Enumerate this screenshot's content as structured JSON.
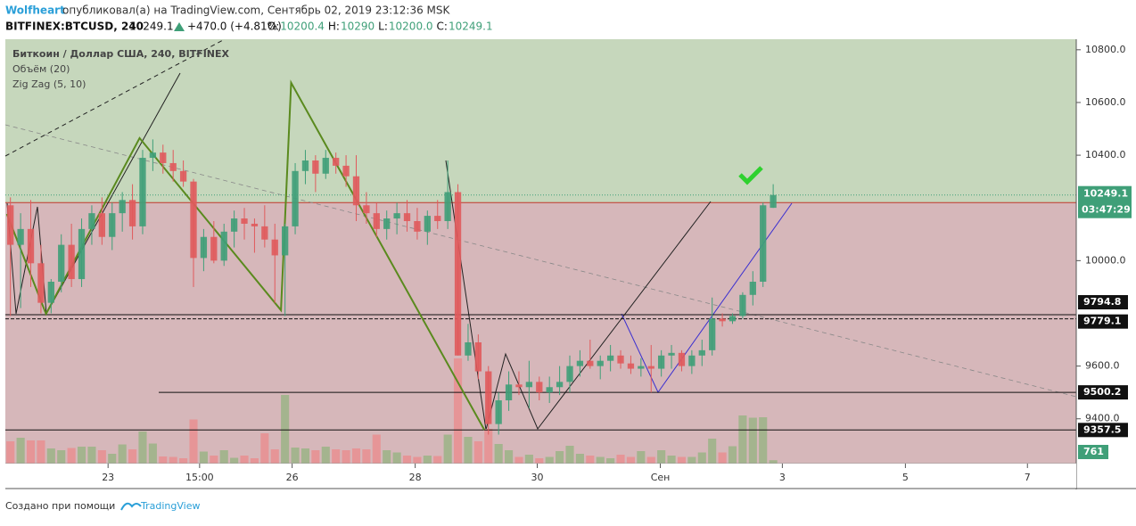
{
  "header": {
    "author": "Wolfheart",
    "published": "опубликовал(а) на TradingView.com, Сентябрь 02, 2019 23:12:36 MSK",
    "symbol": "BITFINEX:BTCUSD, 240",
    "last": "10249.1",
    "change": "+470.0 (+4.81%)",
    "ohlc": [
      {
        "label": "O:",
        "value": "10200.4"
      },
      {
        "label": "H:",
        "value": "10290"
      },
      {
        "label": "L:",
        "value": "10200.0"
      },
      {
        "label": "C:",
        "value": "10249.1"
      }
    ]
  },
  "chart_data": {
    "type": "candlestick",
    "title": "Биткоин / Доллар США, 240, BITFINEX",
    "up_color": "#3f9f78",
    "down_color": "#e05a5c",
    "open": [
      10210,
      10060,
      10120,
      9990,
      9840,
      9920,
      10060,
      9930,
      10120,
      10180,
      10090,
      10180,
      10230,
      10130,
      10390,
      10410,
      10370,
      10340,
      10300,
      10010,
      10090,
      10000,
      10110,
      10160,
      10140,
      10130,
      10080,
      10020,
      10130,
      10340,
      10380,
      10330,
      10390,
      10360,
      10320,
      10210,
      10180,
      10120,
      10160,
      10180,
      10150,
      10110,
      10170,
      10150,
      10260,
      9640,
      9690,
      9580,
      9380,
      9470,
      9530,
      9520,
      9540,
      9500,
      9520,
      9540,
      9600,
      9620,
      9600,
      9620,
      9640,
      9610,
      9590,
      9600,
      9590,
      9640,
      9650,
      9600,
      9640,
      9660,
      9780,
      9770,
      9790,
      9870,
      9920,
      10200.4
    ],
    "high": [
      10240,
      10180,
      10230,
      10060,
      9930,
      10100,
      10140,
      10160,
      10210,
      10240,
      10220,
      10260,
      10290,
      10420,
      10460,
      10440,
      10420,
      10380,
      10310,
      10120,
      10150,
      10140,
      10190,
      10200,
      10160,
      10210,
      10140,
      10140,
      10370,
      10420,
      10400,
      10420,
      10410,
      10400,
      10400,
      10260,
      10220,
      10190,
      10220,
      10230,
      10200,
      10190,
      10230,
      10380,
      10290,
      9760,
      9720,
      9600,
      9500,
      9580,
      9580,
      9620,
      9560,
      9560,
      9600,
      9640,
      9660,
      9700,
      9640,
      9680,
      9660,
      9640,
      9630,
      9680,
      9660,
      9680,
      9660,
      9660,
      9700,
      9860,
      9800,
      9800,
      9880,
      9960,
      10220,
      10290
    ],
    "low": [
      9790,
      9820,
      9900,
      9800,
      9800,
      9880,
      9900,
      9900,
      10060,
      10060,
      10040,
      10110,
      10080,
      10100,
      10340,
      10330,
      10300,
      10280,
      9900,
      9960,
      9990,
      9980,
      10050,
      10080,
      10030,
      10050,
      9840,
      9790,
      10100,
      10290,
      10260,
      10310,
      10330,
      10280,
      10150,
      10140,
      10090,
      10080,
      10100,
      10110,
      10080,
      10060,
      10120,
      10120,
      9640,
      9620,
      9550,
      9340,
      9340,
      9430,
      9490,
      9440,
      9470,
      9460,
      9490,
      9500,
      9560,
      9590,
      9550,
      9580,
      9590,
      9570,
      9560,
      9500,
      9560,
      9590,
      9580,
      9570,
      9600,
      9640,
      9750,
      9760,
      9780,
      9830,
      9900,
      10200.0
    ],
    "close": [
      10060,
      10120,
      9990,
      9840,
      9920,
      10060,
      9930,
      10120,
      10180,
      10090,
      10180,
      10230,
      10130,
      10390,
      10410,
      10370,
      10340,
      10300,
      10010,
      10090,
      10000,
      10110,
      10160,
      10140,
      10130,
      10080,
      10020,
      10130,
      10340,
      10380,
      10330,
      10390,
      10360,
      10320,
      10210,
      10180,
      10120,
      10160,
      10180,
      10150,
      10110,
      10170,
      10150,
      10260,
      9640,
      9690,
      9580,
      9380,
      9470,
      9530,
      9520,
      9540,
      9500,
      9520,
      9540,
      9600,
      9620,
      9600,
      9620,
      9640,
      9610,
      9590,
      9600,
      9590,
      9640,
      9650,
      9600,
      9640,
      9660,
      9780,
      9770,
      9790,
      9870,
      9920,
      10210,
      10249.1
    ],
    "volume": {
      "name": "Объём (20)",
      "up_color": "#a4b48e",
      "down_color": "#e69597",
      "ylim": [
        0,
        24000
      ],
      "values": [
        5000,
        5800,
        5200,
        5200,
        3400,
        3000,
        3500,
        3800,
        3800,
        3000,
        2200,
        4300,
        3200,
        7200,
        4500,
        1600,
        1500,
        1200,
        9900,
        2700,
        1800,
        3000,
        1300,
        1800,
        1200,
        6800,
        3200,
        15400,
        3600,
        3400,
        3000,
        3800,
        3200,
        3000,
        3400,
        3200,
        6500,
        3000,
        2500,
        1800,
        1500,
        1800,
        1700,
        6500,
        23600,
        6000,
        5000,
        7800,
        4400,
        3000,
        1500,
        2000,
        1200,
        1500,
        2800,
        4000,
        2200,
        1800,
        1500,
        1200,
        2000,
        1500,
        2800,
        1500,
        3000,
        1800,
        1500,
        1500,
        2500,
        5600,
        2500,
        3900,
        10800,
        10300,
        10400,
        761
      ]
    },
    "zigzag": {
      "name": "Zig Zag (5, 10)",
      "color": "#5a8a1e",
      "x": [
        -0.35,
        3.5,
        12.7,
        26.6,
        27.6,
        46.6
      ],
      "values": [
        10177,
        9798,
        10465,
        9812,
        10675,
        9358
      ]
    },
    "xlim": [
      -0.5,
      104.8
    ],
    "xticks": [
      {
        "value": 9.6,
        "label": "23"
      },
      {
        "value": 18.6,
        "label": "15:00"
      },
      {
        "value": 27.7,
        "label": "26"
      },
      {
        "value": 39.8,
        "label": "28"
      },
      {
        "value": 51.8,
        "label": "30"
      },
      {
        "value": 63.9,
        "label": "Сен"
      },
      {
        "value": 75.9,
        "label": "3"
      },
      {
        "value": 88,
        "label": "5"
      },
      {
        "value": 100,
        "label": "7"
      }
    ],
    "ylim": [
      9230,
      10840
    ],
    "yticks": [
      {
        "value": 9400,
        "label": "9400.0"
      },
      {
        "value": 9600,
        "label": "9600.0"
      },
      {
        "value": 10000,
        "label": "10000.0"
      },
      {
        "value": 10400,
        "label": "10400.0"
      },
      {
        "value": 10600,
        "label": "10600.0"
      },
      {
        "value": 10800,
        "label": "10800.0"
      }
    ],
    "zone_boundary": 10220,
    "levels": [
      9794.8,
      9779.1,
      9500.2,
      9357.5
    ],
    "last_price": 10249.1,
    "countdown": "03:47:29"
  },
  "footer": {
    "text": "Создано при помощи",
    "brand": "TradingView"
  }
}
